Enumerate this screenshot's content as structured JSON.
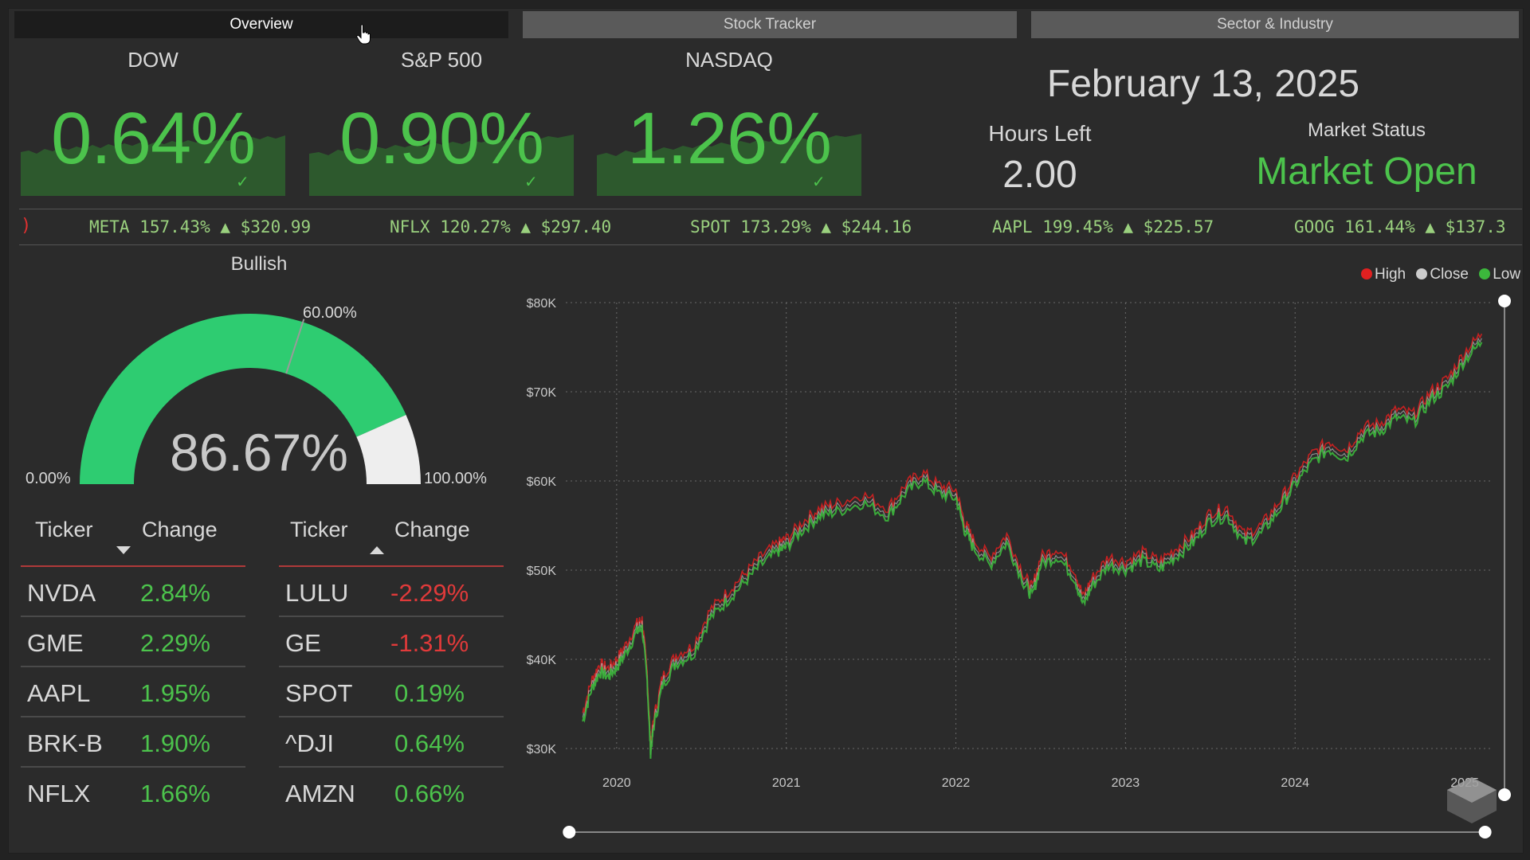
{
  "tabs": [
    {
      "label": "Overview",
      "active": true
    },
    {
      "label": "Stock Tracker",
      "active": false
    },
    {
      "label": "Sector & Industry",
      "active": false
    }
  ],
  "indices": [
    {
      "name": "DOW",
      "change": "0.64%"
    },
    {
      "name": "S&P 500",
      "change": "0.90%"
    },
    {
      "name": "NASDAQ",
      "change": "1.26%"
    }
  ],
  "date": "February 13, 2025",
  "hours_left": {
    "label": "Hours Left",
    "value": "2.00"
  },
  "market_status": {
    "label": "Market Status",
    "value": "Market Open"
  },
  "ticker_tape": [
    {
      "text": "META 157.43% ▲ $320.99"
    },
    {
      "text": "NFLX 120.27% ▲ $297.40"
    },
    {
      "text": "SPOT 173.29% ▲ $244.16"
    },
    {
      "text": "AAPL 199.45% ▲ $225.57"
    },
    {
      "text": "GOOG 161.44% ▲ $137.3"
    }
  ],
  "gauge": {
    "title": "Bullish",
    "value_label": "86.67%",
    "value": 0.8667,
    "min_label": "0.00%",
    "max_label": "100.00%",
    "target_label": "60.00%",
    "target": 0.6,
    "fill_color": "#2ecc71",
    "rest_color": "#eeeeee"
  },
  "top_gainers": {
    "headers": {
      "ticker": "Ticker",
      "change": "Change"
    },
    "sort": "descending",
    "rows": [
      {
        "ticker": "NVDA",
        "change": "2.84%"
      },
      {
        "ticker": "GME",
        "change": "2.29%"
      },
      {
        "ticker": "AAPL",
        "change": "1.95%"
      },
      {
        "ticker": "BRK-B",
        "change": "1.90%"
      },
      {
        "ticker": "NFLX",
        "change": "1.66%"
      }
    ]
  },
  "top_losers": {
    "headers": {
      "ticker": "Ticker",
      "change": "Change"
    },
    "sort": "ascending",
    "rows": [
      {
        "ticker": "LULU",
        "change": "-2.29%"
      },
      {
        "ticker": "GE",
        "change": "-1.31%"
      },
      {
        "ticker": "SPOT",
        "change": "0.19%"
      },
      {
        "ticker": "^DJI",
        "change": "0.64%"
      },
      {
        "ticker": "AMZN",
        "change": "0.66%"
      }
    ]
  },
  "colors": {
    "positive": "#4cc34c",
    "negative": "#e03a3a",
    "high": "#e02020",
    "close": "#cccccc",
    "low": "#3cb83c"
  },
  "chart_data": {
    "type": "line",
    "legend": [
      "High",
      "Close",
      "Low"
    ],
    "legend_position": "top-right",
    "y_ticks": [
      "$30K",
      "$40K",
      "$50K",
      "$60K",
      "$70K",
      "$80K"
    ],
    "ylim": [
      30000,
      80000
    ],
    "x_ticks": [
      "2020",
      "2021",
      "2022",
      "2023",
      "2024",
      "2025"
    ],
    "xlim": [
      2019.7,
      2025.15
    ],
    "grid": true,
    "series_close": {
      "x": [
        2019.8,
        2019.85,
        2019.9,
        2019.95,
        2020.0,
        2020.05,
        2020.12,
        2020.15,
        2020.18,
        2020.2,
        2020.22,
        2020.27,
        2020.35,
        2020.45,
        2020.55,
        2020.65,
        2020.75,
        2020.85,
        2020.95,
        2021.0,
        2021.1,
        2021.2,
        2021.3,
        2021.45,
        2021.6,
        2021.7,
        2021.8,
        2021.9,
        2022.0,
        2022.05,
        2022.1,
        2022.2,
        2022.3,
        2022.4,
        2022.45,
        2022.5,
        2022.6,
        2022.7,
        2022.75,
        2022.8,
        2022.9,
        2023.0,
        2023.1,
        2023.2,
        2023.3,
        2023.4,
        2023.5,
        2023.6,
        2023.7,
        2023.8,
        2023.9,
        2024.0,
        2024.1,
        2024.2,
        2024.3,
        2024.4,
        2024.5,
        2024.6,
        2024.7,
        2024.8,
        2024.9,
        2025.0,
        2025.1
      ],
      "y": [
        33500,
        37000,
        39000,
        38500,
        39500,
        41000,
        43500,
        44000,
        38000,
        30000,
        33000,
        37500,
        40000,
        41000,
        45000,
        47000,
        49000,
        51000,
        52500,
        53000,
        55000,
        56500,
        57000,
        58000,
        56500,
        59000,
        60500,
        59000,
        58500,
        55000,
        53000,
        51000,
        53500,
        49000,
        47500,
        51000,
        52000,
        49500,
        46500,
        48500,
        51000,
        50500,
        51500,
        50500,
        52000,
        53500,
        56000,
        56500,
        53500,
        54500,
        57000,
        60000,
        62500,
        64000,
        63000,
        65500,
        66000,
        67500,
        67000,
        69500,
        71000,
        74000,
        76000
      ]
    }
  }
}
